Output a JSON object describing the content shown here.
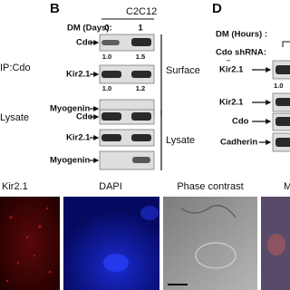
{
  "left_labels": {
    "ip": "IP:Cdo",
    "lysate": "Lysate"
  },
  "panel_b": {
    "letter": "B",
    "cell_line": "C2C12",
    "dm_label": "DM (Days):",
    "lanes": [
      "0",
      "1"
    ],
    "surface_rows": [
      {
        "label": "Cdo",
        "quant": [
          "1.0",
          "1.5"
        ]
      },
      {
        "label": "Kir2.1",
        "quant": [
          "1.0",
          "1.2"
        ]
      },
      {
        "label": "Myogenin"
      }
    ],
    "surface_label": "Surface",
    "lysate_rows": [
      {
        "label": "Cdo"
      },
      {
        "label": "Kir2.1"
      },
      {
        "label": "Myogenin"
      }
    ],
    "lysate_label": "Lysate"
  },
  "panel_d": {
    "letter": "D",
    "dm_label": "DM (Hours) :",
    "shrna_label": "Cdo shRNA:",
    "shrna_lane": "–",
    "rows": [
      {
        "label": "Kir2.1",
        "quant": "1.0"
      },
      {
        "label": "Kir2.1"
      },
      {
        "label": "Cdo"
      },
      {
        "label": "Cadherin"
      }
    ]
  },
  "micrographs": {
    "labels": [
      "Kir2.1",
      "DAPI",
      "Phase contrast",
      "M"
    ]
  }
}
